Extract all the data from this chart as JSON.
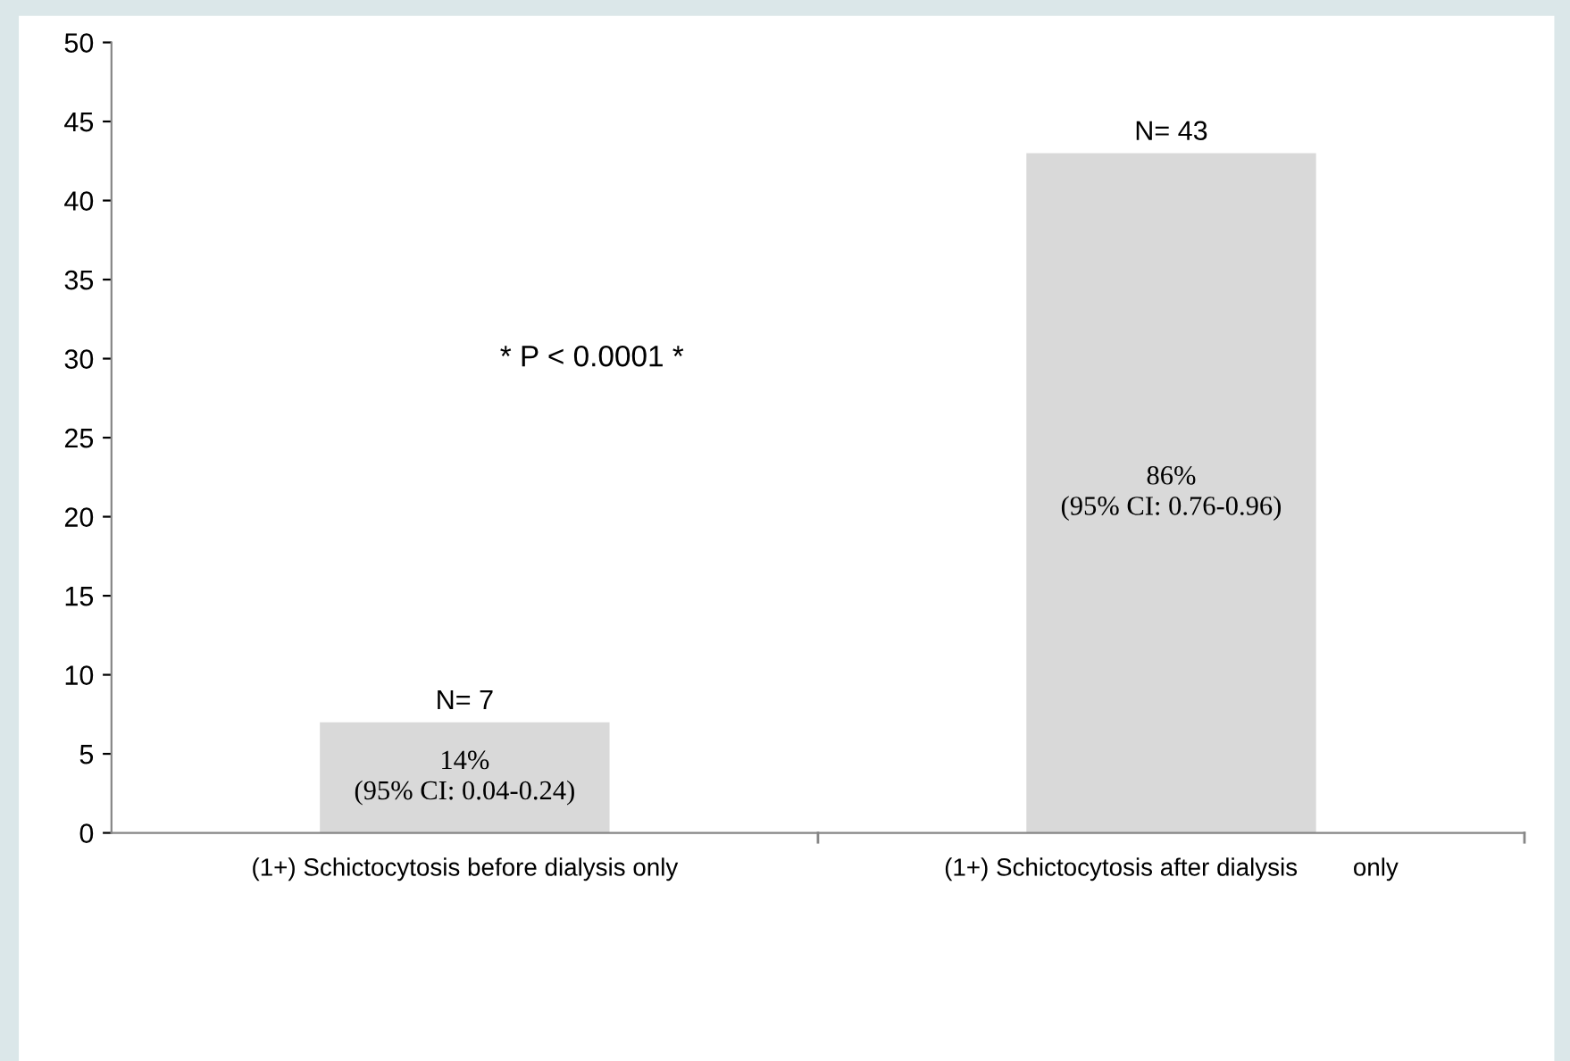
{
  "chart_data": {
    "type": "bar",
    "categories": [
      "(1+) Schictocytosis before dialysis only",
      "(1+) Schictocytosis after dialysis        only"
    ],
    "values": [
      7,
      43
    ],
    "color": "#d9d9d9",
    "value_labels": [
      "N= 7",
      "N= 43"
    ],
    "ylim": [
      0,
      50
    ],
    "yticks": [
      0,
      5,
      10,
      15,
      20,
      25,
      30,
      35,
      40,
      45,
      50
    ],
    "annotations": [
      "14%\n(95% CI: 0.04-0.24)",
      "86%\n(95% CI: 0.76-0.96)",
      "* P < 0.0001 *"
    ]
  }
}
